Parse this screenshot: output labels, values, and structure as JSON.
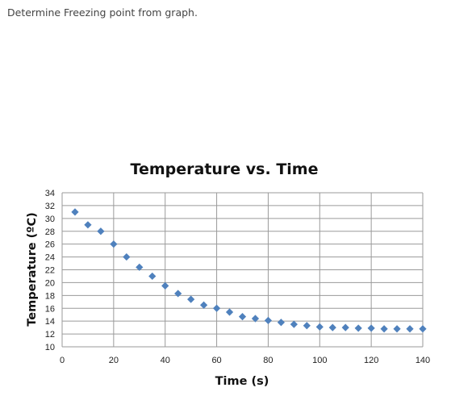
{
  "question_text": "Determine Freezing point from graph.",
  "colors": {
    "marker": "#4f81bd",
    "grid": "#9a9a9a"
  },
  "chart_data": {
    "type": "scatter",
    "title": "Temperature vs. Time",
    "xlabel": "Time (s)",
    "ylabel": "Temperature (ºC)",
    "xlim": [
      0,
      140
    ],
    "ylim": [
      10,
      34
    ],
    "x_ticks": [
      0,
      20,
      40,
      60,
      80,
      100,
      120,
      140
    ],
    "y_ticks": [
      10,
      12,
      14,
      16,
      18,
      20,
      22,
      24,
      26,
      28,
      30,
      32,
      34
    ],
    "grid": true,
    "marker": "diamond",
    "series": [
      {
        "x": [
          5,
          10,
          15,
          20,
          25,
          30,
          35,
          40,
          45,
          50,
          55,
          60,
          65,
          70,
          75,
          80,
          85,
          90,
          95,
          100,
          105,
          110,
          115,
          120,
          125,
          130,
          135,
          140
        ],
        "y": [
          31.0,
          29.0,
          28.0,
          26.0,
          24.0,
          22.4,
          21.0,
          19.5,
          18.3,
          17.4,
          16.5,
          16.0,
          15.4,
          14.7,
          14.4,
          14.1,
          13.8,
          13.5,
          13.3,
          13.1,
          13.0,
          13.0,
          12.9,
          12.9,
          12.8,
          12.8,
          12.8,
          12.8
        ]
      }
    ]
  }
}
